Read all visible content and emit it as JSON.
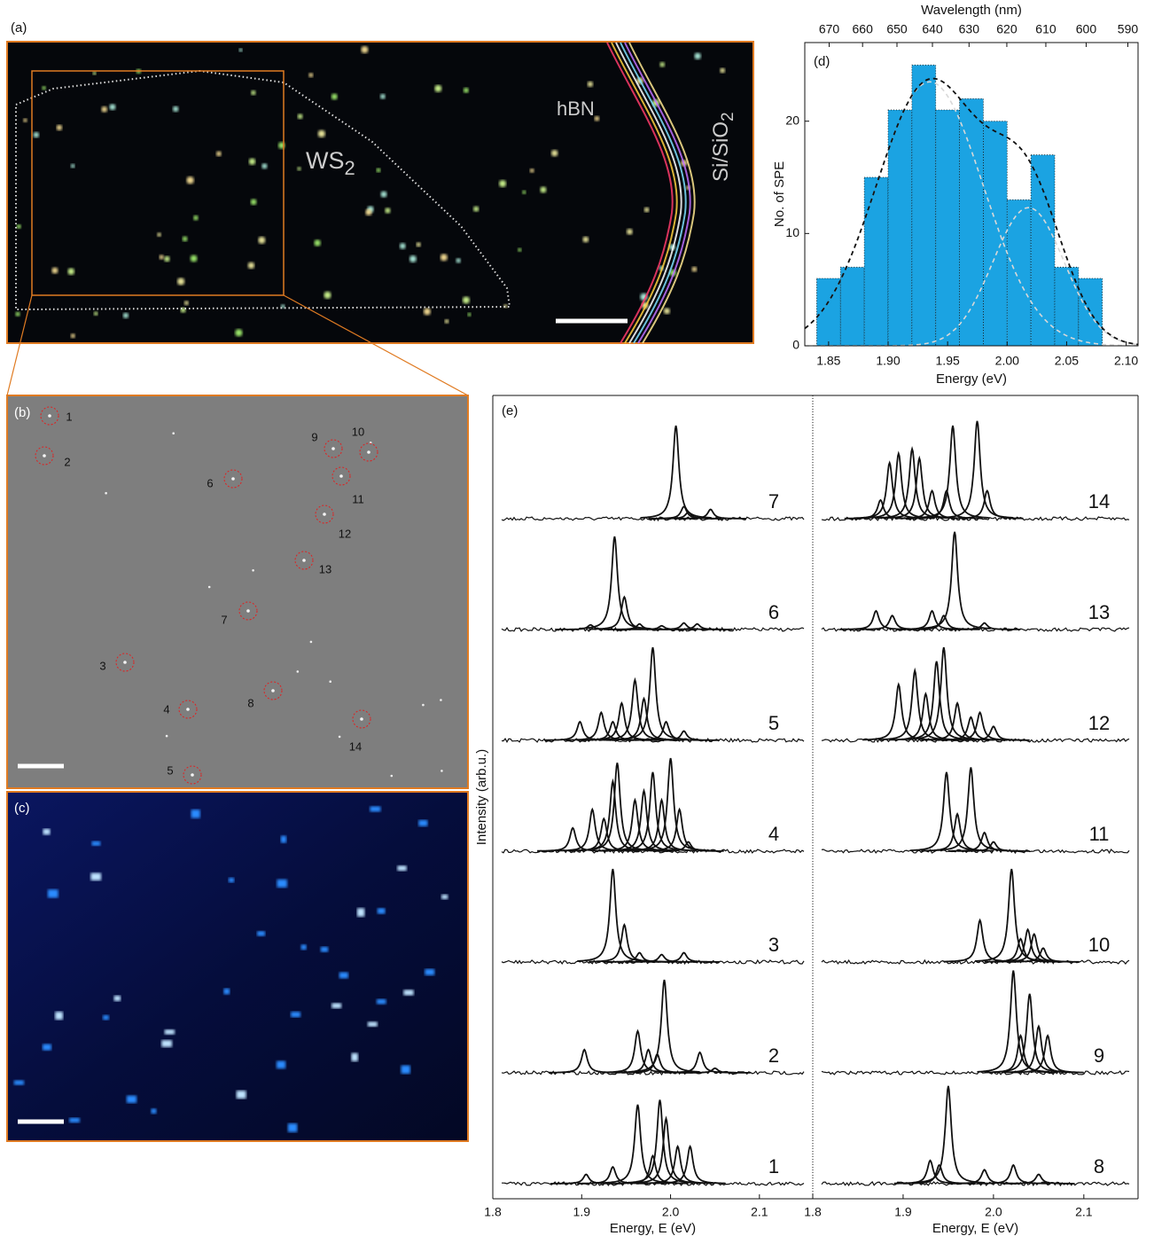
{
  "images": {
    "a": {
      "label": "(a)",
      "hbn": "hBN",
      "ws": "WS",
      "ws_sub": "2",
      "si": "Si/SiO",
      "si_sub": "2"
    },
    "b": {
      "label": "(b)",
      "markers": [
        "1",
        "2",
        "3",
        "4",
        "5",
        "6",
        "7",
        "8",
        "9",
        "10",
        "11",
        "12",
        "13",
        "14"
      ]
    },
    "c": {
      "label": "(c)"
    }
  },
  "chart_data": [
    {
      "type": "histogram",
      "label": "(d)",
      "xlabel": "Energy (eV)",
      "ylabel": "No. of SPE",
      "x2label": "Wavelength (nm)",
      "bins": [
        1.84,
        1.86,
        1.88,
        1.9,
        1.92,
        1.94,
        1.96,
        1.98,
        2.0,
        2.02,
        2.04,
        2.06,
        2.08
      ],
      "values": [
        6,
        7,
        15,
        21,
        25,
        21,
        22,
        20,
        13,
        17,
        7,
        6
      ],
      "color": "#1ba3e2",
      "xlim": [
        1.83,
        2.11
      ],
      "ylim": [
        0,
        27
      ],
      "xticks": [
        1.85,
        {
          "value": 1.9,
          "label": "1.90"
        },
        1.95,
        {
          "value": 2,
          "label": "2.00"
        },
        2.05,
        {
          "value": 2.1,
          "label": "2.10"
        }
      ],
      "yticks": [
        0,
        10,
        20
      ],
      "x2ticks": [
        670,
        660,
        650,
        640,
        630,
        620,
        610,
        600,
        590
      ],
      "fits": {
        "centers": [
          1.935,
          2.018
        ],
        "amplitudes": [
          23.5,
          12.3
        ],
        "widths": [
          0.045,
          0.03
        ]
      }
    },
    {
      "type": "spectra",
      "label": "(e)",
      "ylabel": "Intensity (arb.u.)",
      "xlabel": "Energy, E (eV)",
      "xlim": [
        1.8,
        2.16
      ],
      "xticks": [
        1.8,
        1.9,
        {
          "value": 2,
          "label": "2.0"
        },
        2.1
      ],
      "series": [
        {
          "name": "7",
          "x": [
            2.006,
            2.015,
            2.02,
            2.045
          ],
          "values": [
            1.0,
            0.13,
            0.07,
            0.1
          ]
        },
        {
          "name": "6",
          "x": [
            1.91,
            1.937,
            1.948,
            1.965,
            1.99,
            2.015,
            2.03
          ],
          "values": [
            0.05,
            1.0,
            0.35,
            0.06,
            0.04,
            0.07,
            0.06
          ]
        },
        {
          "name": "5",
          "x": [
            1.898,
            1.922,
            1.935,
            1.945,
            1.96,
            1.97,
            1.98,
            1.995,
            2.015
          ],
          "values": [
            0.2,
            0.3,
            0.2,
            0.4,
            0.65,
            0.45,
            1.0,
            0.2,
            0.1
          ]
        },
        {
          "name": "4",
          "x": [
            1.89,
            1.912,
            1.925,
            1.935,
            1.94,
            1.96,
            1.97,
            1.98,
            1.99,
            2.0,
            2.01,
            2.02
          ],
          "values": [
            0.25,
            0.45,
            0.35,
            0.75,
            0.95,
            0.55,
            0.65,
            0.85,
            0.55,
            1.0,
            0.45,
            0.1
          ]
        },
        {
          "name": "3",
          "x": [
            1.935,
            1.948,
            1.965,
            1.99,
            2.015
          ],
          "values": [
            1.0,
            0.4,
            0.1,
            0.08,
            0.1
          ]
        },
        {
          "name": "2",
          "x": [
            1.903,
            1.963,
            1.975,
            1.985,
            1.993,
            2.033,
            2.05
          ],
          "values": [
            0.25,
            0.45,
            0.25,
            0.2,
            1.0,
            0.22,
            0.05
          ]
        },
        {
          "name": "1",
          "x": [
            1.905,
            1.935,
            1.963,
            1.98,
            1.988,
            1.995,
            2.008,
            2.022
          ],
          "values": [
            0.1,
            0.18,
            0.85,
            0.3,
            0.9,
            0.7,
            0.4,
            0.4
          ]
        }
      ]
    },
    {
      "type": "spectra",
      "xlabel": "Energy, E (eV)",
      "xlim": [
        1.8,
        2.16
      ],
      "xticks": [
        1.8,
        1.9,
        {
          "value": 2,
          "label": "2.0"
        },
        2.1
      ],
      "series": [
        {
          "name": "14",
          "x": [
            1.875,
            1.885,
            1.895,
            1.91,
            1.918,
            1.932,
            1.948,
            1.955,
            1.982,
            1.993
          ],
          "values": [
            0.2,
            0.6,
            0.7,
            0.75,
            0.65,
            0.3,
            0.3,
            1.0,
            1.05,
            0.3
          ]
        },
        {
          "name": "13",
          "x": [
            1.87,
            1.888,
            1.932,
            1.945,
            1.957,
            1.99
          ],
          "values": [
            0.2,
            0.15,
            0.2,
            0.15,
            1.05,
            0.07
          ]
        },
        {
          "name": "12",
          "x": [
            1.895,
            1.913,
            1.925,
            1.937,
            1.945,
            1.96,
            1.975,
            1.985,
            2.0
          ],
          "values": [
            0.6,
            0.75,
            0.5,
            0.85,
            1.0,
            0.4,
            0.25,
            0.3,
            0.15
          ]
        },
        {
          "name": "11",
          "x": [
            1.948,
            1.96,
            1.975,
            1.99,
            2.0
          ],
          "values": [
            0.85,
            0.4,
            0.9,
            0.2,
            0.1
          ]
        },
        {
          "name": "10",
          "x": [
            1.985,
            2.02,
            2.03,
            2.038,
            2.045,
            2.055
          ],
          "values": [
            0.45,
            1.0,
            0.25,
            0.35,
            0.3,
            0.15
          ]
        },
        {
          "name": "9",
          "x": [
            2.022,
            2.03,
            2.04,
            2.05,
            2.06
          ],
          "values": [
            1.1,
            0.4,
            0.85,
            0.5,
            0.4
          ]
        },
        {
          "name": "8",
          "x": [
            1.93,
            1.94,
            1.95,
            1.99,
            2.022,
            2.05
          ],
          "values": [
            0.25,
            0.2,
            1.05,
            0.15,
            0.2,
            0.1
          ]
        }
      ]
    }
  ]
}
